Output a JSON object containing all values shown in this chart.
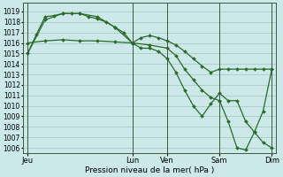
{
  "background_color": "#cce8e8",
  "grid_color": "#a0c8b8",
  "line_color": "#2a6b2a",
  "marker_color": "#2a6b2a",
  "title": "Pression niveau de la mer( hPa )",
  "ylim": [
    1005.5,
    1019.8
  ],
  "yticks": [
    1006,
    1007,
    1008,
    1009,
    1010,
    1011,
    1012,
    1013,
    1014,
    1015,
    1016,
    1017,
    1018,
    1019
  ],
  "xtick_labels": [
    "Jeu",
    "",
    "Lun",
    "Ven",
    "",
    "Sam",
    "",
    "Dim"
  ],
  "xtick_positions": [
    0,
    6,
    12,
    16,
    19,
    22,
    25,
    28
  ],
  "xlim": [
    -0.5,
    28.5
  ],
  "vlines": [
    0,
    12,
    16,
    22,
    28
  ],
  "series1_x": [
    0,
    1,
    2,
    3,
    4,
    5,
    6,
    7,
    8,
    9,
    10,
    11,
    12,
    13,
    14,
    15,
    16,
    17,
    18,
    19,
    20,
    21,
    22,
    23,
    24,
    25,
    26,
    27,
    28
  ],
  "series1_y": [
    1015.0,
    1016.8,
    1018.5,
    1018.6,
    1018.8,
    1018.8,
    1018.8,
    1018.5,
    1018.3,
    1018.0,
    1017.5,
    1017.0,
    1016.0,
    1016.5,
    1016.7,
    1016.5,
    1016.2,
    1015.8,
    1015.2,
    1014.5,
    1013.8,
    1013.2,
    1013.5,
    1013.5,
    1013.5,
    1013.5,
    1013.5,
    1013.5,
    1013.5
  ],
  "series2_x": [
    0,
    2,
    4,
    6,
    8,
    10,
    12,
    14,
    16,
    17,
    18,
    19,
    20,
    21,
    22
  ],
  "series2_y": [
    1016.0,
    1016.2,
    1016.3,
    1016.2,
    1016.2,
    1016.1,
    1016.0,
    1015.8,
    1015.5,
    1014.8,
    1013.5,
    1012.5,
    1011.5,
    1010.8,
    1010.5
  ],
  "series3_x": [
    0,
    2,
    4,
    6,
    8,
    10,
    12,
    13,
    14,
    15,
    16,
    17,
    18,
    19,
    20,
    21,
    22,
    23,
    24,
    25,
    26,
    27,
    28
  ],
  "series3_y": [
    1015.0,
    1018.2,
    1018.8,
    1018.8,
    1018.5,
    1017.5,
    1016.0,
    1015.5,
    1015.5,
    1015.2,
    1014.5,
    1013.2,
    1011.5,
    1010.0,
    1009.0,
    1010.2,
    1011.2,
    1010.5,
    1010.5,
    1008.5,
    1007.5,
    1006.5,
    1006.0
  ],
  "series4_x": [
    22,
    23,
    24,
    25,
    26,
    27,
    28
  ],
  "series4_y": [
    1010.5,
    1008.5,
    1006.0,
    1005.8,
    1007.5,
    1009.5,
    1013.5
  ]
}
